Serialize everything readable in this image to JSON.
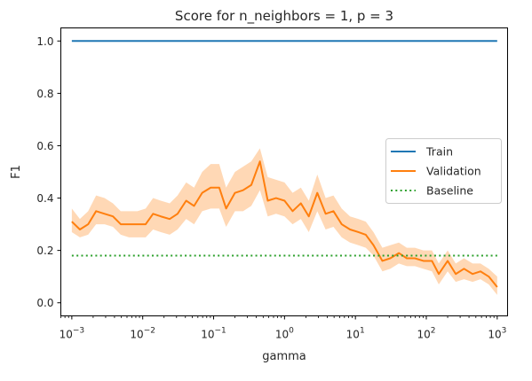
{
  "chart_data": {
    "type": "line",
    "title": "Score for n_neighbors = 1, p = 3",
    "xlabel": "gamma",
    "ylabel": "F1",
    "xscale": "log",
    "xlim": [
      0.0007,
      1400
    ],
    "ylim": [
      -0.05,
      1.05
    ],
    "xticks": [
      {
        "value": 0.001,
        "base": "10",
        "exp": "−3"
      },
      {
        "value": 0.01,
        "base": "10",
        "exp": "−2"
      },
      {
        "value": 0.1,
        "base": "10",
        "exp": "−1"
      },
      {
        "value": 1,
        "base": "10",
        "exp": "0"
      },
      {
        "value": 10,
        "base": "10",
        "exp": "1"
      },
      {
        "value": 100,
        "base": "10",
        "exp": "2"
      },
      {
        "value": 1000,
        "base": "10",
        "exp": "3"
      }
    ],
    "yticks": [
      {
        "value": 0.0,
        "label": "0.0"
      },
      {
        "value": 0.2,
        "label": "0.2"
      },
      {
        "value": 0.4,
        "label": "0.4"
      },
      {
        "value": 0.6,
        "label": "0.6"
      },
      {
        "value": 0.8,
        "label": "0.8"
      },
      {
        "value": 1.0,
        "label": "1.0"
      }
    ],
    "legend_position": "center-right",
    "grid": false,
    "x": [
      0.001,
      0.0013,
      0.0017,
      0.0022,
      0.0029,
      0.0038,
      0.0049,
      0.0064,
      0.0084,
      0.011,
      0.014,
      0.018,
      0.024,
      0.031,
      0.041,
      0.053,
      0.069,
      0.091,
      0.12,
      0.15,
      0.2,
      0.26,
      0.34,
      0.45,
      0.58,
      0.76,
      1.0,
      1.3,
      1.7,
      2.2,
      2.9,
      3.8,
      4.9,
      6.4,
      8.4,
      11,
      14,
      18,
      24,
      31,
      41,
      53,
      69,
      91,
      120,
      150,
      200,
      260,
      340,
      450,
      580,
      760,
      1000
    ],
    "series": [
      {
        "name": "Train",
        "color": "#1f77b4",
        "dash": "solid",
        "values": [
          1.0,
          1.0,
          1.0,
          1.0,
          1.0,
          1.0,
          1.0,
          1.0,
          1.0,
          1.0,
          1.0,
          1.0,
          1.0,
          1.0,
          1.0,
          1.0,
          1.0,
          1.0,
          1.0,
          1.0,
          1.0,
          1.0,
          1.0,
          1.0,
          1.0,
          1.0,
          1.0,
          1.0,
          1.0,
          1.0,
          1.0,
          1.0,
          1.0,
          1.0,
          1.0,
          1.0,
          1.0,
          1.0,
          1.0,
          1.0,
          1.0,
          1.0,
          1.0,
          1.0,
          1.0,
          1.0,
          1.0,
          1.0,
          1.0,
          1.0,
          1.0,
          1.0,
          1.0
        ]
      },
      {
        "name": "Validation",
        "color": "#ff7f0e",
        "band_color": "#ffd8b5",
        "dash": "solid",
        "values": [
          0.31,
          0.28,
          0.3,
          0.35,
          0.34,
          0.33,
          0.3,
          0.3,
          0.3,
          0.3,
          0.34,
          0.33,
          0.32,
          0.34,
          0.39,
          0.37,
          0.42,
          0.44,
          0.44,
          0.36,
          0.42,
          0.43,
          0.45,
          0.54,
          0.39,
          0.4,
          0.39,
          0.35,
          0.38,
          0.33,
          0.42,
          0.34,
          0.35,
          0.3,
          0.28,
          0.27,
          0.26,
          0.22,
          0.16,
          0.17,
          0.19,
          0.17,
          0.17,
          0.16,
          0.16,
          0.11,
          0.16,
          0.11,
          0.13,
          0.11,
          0.12,
          0.1,
          0.06
        ],
        "band_lower": [
          0.27,
          0.25,
          0.26,
          0.3,
          0.3,
          0.29,
          0.26,
          0.25,
          0.25,
          0.25,
          0.28,
          0.27,
          0.26,
          0.28,
          0.32,
          0.3,
          0.35,
          0.36,
          0.36,
          0.29,
          0.35,
          0.35,
          0.37,
          0.43,
          0.33,
          0.34,
          0.33,
          0.3,
          0.32,
          0.27,
          0.35,
          0.28,
          0.29,
          0.25,
          0.23,
          0.22,
          0.21,
          0.18,
          0.12,
          0.13,
          0.15,
          0.14,
          0.14,
          0.13,
          0.12,
          0.07,
          0.12,
          0.08,
          0.09,
          0.08,
          0.09,
          0.07,
          0.03
        ],
        "band_upper": [
          0.36,
          0.32,
          0.35,
          0.41,
          0.4,
          0.38,
          0.35,
          0.35,
          0.35,
          0.36,
          0.4,
          0.39,
          0.38,
          0.41,
          0.46,
          0.44,
          0.5,
          0.53,
          0.53,
          0.44,
          0.5,
          0.52,
          0.54,
          0.59,
          0.48,
          0.47,
          0.46,
          0.42,
          0.44,
          0.39,
          0.49,
          0.4,
          0.41,
          0.36,
          0.33,
          0.32,
          0.31,
          0.27,
          0.21,
          0.22,
          0.23,
          0.21,
          0.21,
          0.2,
          0.2,
          0.15,
          0.2,
          0.15,
          0.17,
          0.15,
          0.15,
          0.13,
          0.1
        ]
      },
      {
        "name": "Baseline",
        "color": "#2ca02c",
        "dash": "dotted",
        "values": [
          0.18,
          0.18,
          0.18,
          0.18,
          0.18,
          0.18,
          0.18,
          0.18,
          0.18,
          0.18,
          0.18,
          0.18,
          0.18,
          0.18,
          0.18,
          0.18,
          0.18,
          0.18,
          0.18,
          0.18,
          0.18,
          0.18,
          0.18,
          0.18,
          0.18,
          0.18,
          0.18,
          0.18,
          0.18,
          0.18,
          0.18,
          0.18,
          0.18,
          0.18,
          0.18,
          0.18,
          0.18,
          0.18,
          0.18,
          0.18,
          0.18,
          0.18,
          0.18,
          0.18,
          0.18,
          0.18,
          0.18,
          0.18,
          0.18,
          0.18,
          0.18,
          0.18,
          0.18
        ]
      }
    ]
  }
}
